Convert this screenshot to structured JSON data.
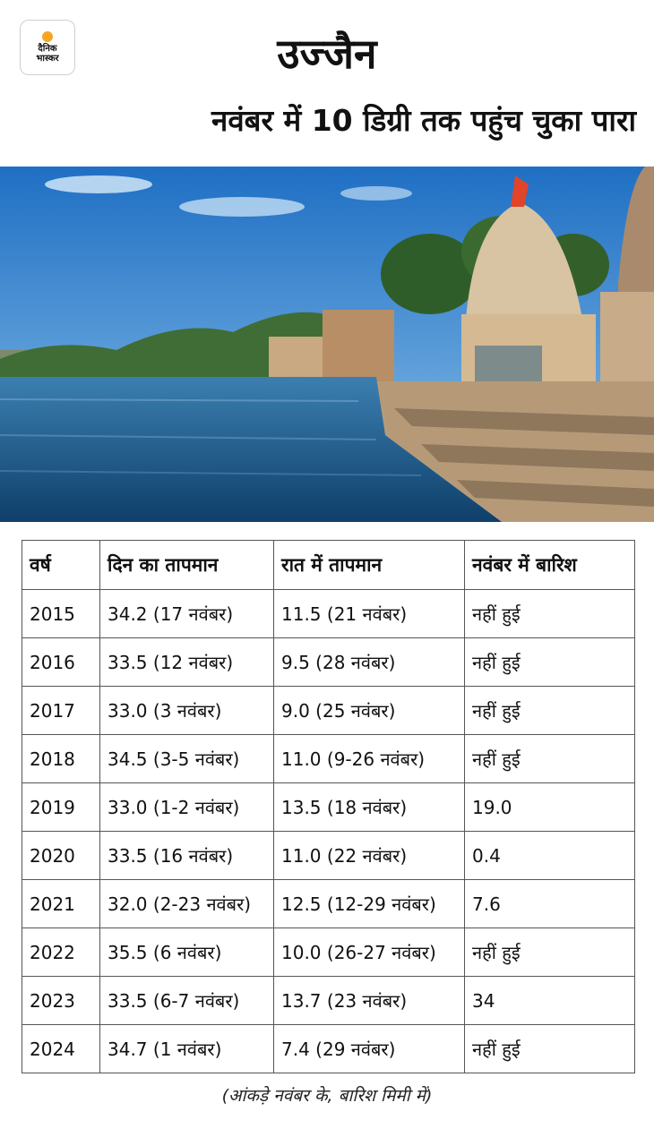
{
  "logo": {
    "line1": "दैनिक",
    "line2": "भास्कर"
  },
  "title": "उज्जैन",
  "subtitle": "नवंबर में 10 डिग्री तक पहुंच चुका पारा",
  "photo": {
    "description": "ghat-temple-river"
  },
  "table": {
    "headers": [
      "वर्ष",
      "दिन का तापमान",
      "रात में तापमान",
      "नवंबर में बारिश"
    ],
    "rows": [
      [
        "2015",
        "34.2 (17 नवंबर)",
        "11.5 (21 नवंबर)",
        "नहीं हुई"
      ],
      [
        "2016",
        "33.5 (12 नवंबर)",
        "9.5 (28 नवंबर)",
        "नहीं हुई"
      ],
      [
        "2017",
        "33.0 (3 नवंबर)",
        "9.0 (25 नवंबर)",
        "नहीं हुई"
      ],
      [
        "2018",
        "34.5 (3-5 नवंबर)",
        "11.0 (9-26 नवंबर)",
        "नहीं हुई"
      ],
      [
        "2019",
        "33.0 (1-2 नवंबर)",
        "13.5 (18 नवंबर)",
        "19.0"
      ],
      [
        "2020",
        "33.5 (16 नवंबर)",
        "11.0 (22 नवंबर)",
        "0.4"
      ],
      [
        "2021",
        "32.0 (2-23 नवंबर)",
        "12.5 (12-29 नवंबर)",
        "7.6"
      ],
      [
        "2022",
        "35.5 (6 नवंबर)",
        "10.0 (26-27 नवंबर)",
        "नहीं हुई"
      ],
      [
        "2023",
        "33.5 (6-7 नवंबर)",
        "13.7 (23 नवंबर)",
        "34"
      ],
      [
        "2024",
        "34.7 (1 नवंबर)",
        "7.4 (29 नवंबर)",
        "नहीं हुई"
      ]
    ]
  },
  "footnote": "(आंकड़े नवंबर के, बारिश मिमी में)"
}
